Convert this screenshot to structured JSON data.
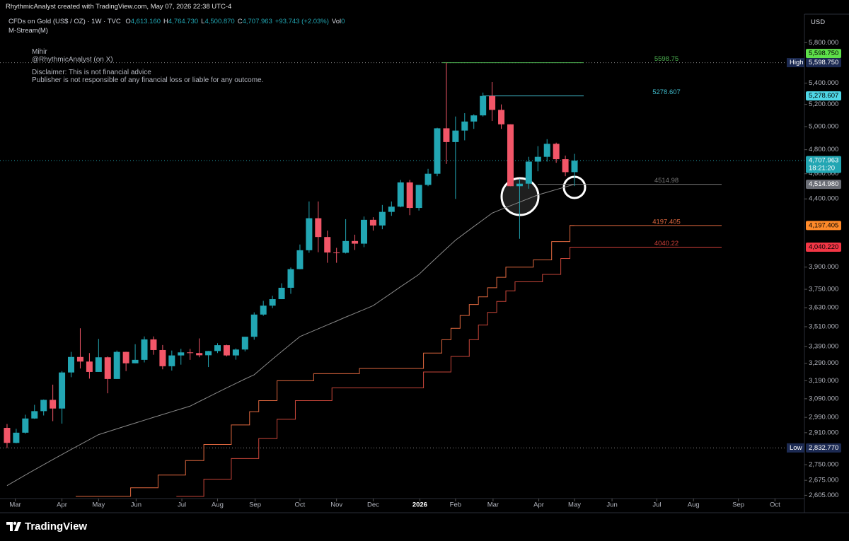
{
  "header": {
    "credit": "RhythmicAnalyst created with TradingView.com, May 07, 2026 22:38 UTC-4",
    "symbol": "CFDs on Gold (US$ / OZ) · 1W · TVC",
    "ohlc": [
      {
        "key": "O",
        "value": "4,613.160"
      },
      {
        "key": "H",
        "value": "4,764.730"
      },
      {
        "key": "L",
        "value": "4,500.870"
      },
      {
        "key": "C",
        "value": "4,707.963"
      }
    ],
    "change": "+93.743 (+2.03%)",
    "vol_key": "Vol",
    "vol": "0",
    "indicator": "M-Stream(M)",
    "currency": "USD",
    "brand": "TradingView"
  },
  "notes": [
    "Mihir",
    "@RhythmicAnalyst (on X)",
    "Disclaimer: This is not financial advice",
    "Publisher is not responsible of any financial loss or liable for any outcome."
  ],
  "chart_data": {
    "type": "candlestick",
    "log": true,
    "up_color": "#22a6b3",
    "down_color": "#f25668",
    "xlim": [
      -0.77,
      87.12
    ],
    "ylim": [
      2590,
      6100
    ],
    "xticks": [
      {
        "value": 0.9,
        "label": "Mar"
      },
      {
        "value": 6.0,
        "label": "Apr"
      },
      {
        "value": 10.0,
        "label": "May"
      },
      {
        "value": 14.1,
        "label": "Jun"
      },
      {
        "value": 19.1,
        "label": "Jul"
      },
      {
        "value": 23.0,
        "label": "Aug"
      },
      {
        "value": 27.1,
        "label": "Sep"
      },
      {
        "value": 32.0,
        "label": "Oct"
      },
      {
        "value": 36.0,
        "label": "Nov"
      },
      {
        "value": 40.0,
        "label": "Dec"
      },
      {
        "value": 45.1,
        "label": "2026"
      },
      {
        "value": 49.0,
        "label": "Feb"
      },
      {
        "value": 53.1,
        "label": "Mar"
      },
      {
        "value": 58.1,
        "label": "Apr"
      },
      {
        "value": 62.0,
        "label": "May"
      },
      {
        "value": 66.1,
        "label": "Jun"
      },
      {
        "value": 71.0,
        "label": "Jul"
      },
      {
        "value": 75.0,
        "label": "Aug"
      },
      {
        "value": 79.9,
        "label": "Sep"
      },
      {
        "value": 83.9,
        "label": "Oct"
      }
    ],
    "yticks": [
      {
        "value": 5800,
        "label": "5,800.000"
      },
      {
        "value": 5400,
        "label": "5,400.000"
      },
      {
        "value": 5200,
        "label": "5,200.000"
      },
      {
        "value": 5000,
        "label": "5,000.000"
      },
      {
        "value": 4800,
        "label": "4,800.000"
      },
      {
        "value": 4600,
        "label": "4,600.000"
      },
      {
        "value": 4400,
        "label": "4,400.000"
      },
      {
        "value": 3900,
        "label": "3,900.000"
      },
      {
        "value": 3750,
        "label": "3,750.000"
      },
      {
        "value": 3630,
        "label": "3,630.000"
      },
      {
        "value": 3510,
        "label": "3,510.000"
      },
      {
        "value": 3390,
        "label": "3,390.000"
      },
      {
        "value": 3290,
        "label": "3,290.000"
      },
      {
        "value": 3190,
        "label": "3,190.000"
      },
      {
        "value": 3090,
        "label": "3,090.000"
      },
      {
        "value": 2990,
        "label": "2,990.000"
      },
      {
        "value": 2910,
        "label": "2,910.000"
      },
      {
        "value": 2750,
        "label": "2,750.000"
      },
      {
        "value": 2675,
        "label": "2,675.000"
      },
      {
        "value": 2605,
        "label": "2,605.000"
      }
    ],
    "open": [
      2935,
      2858,
      2910,
      2984,
      3023,
      3084,
      3037,
      3237,
      3327,
      3300,
      3240,
      3325,
      3200,
      3357,
      3290,
      3310,
      3432,
      3368,
      3273,
      3336,
      3354,
      3350,
      3337,
      3362,
      3397,
      3336,
      3371,
      3448,
      3586,
      3643,
      3685,
      3760,
      3886,
      4018,
      4252,
      4113,
      4002,
      4000,
      4084,
      4065,
      4240,
      4198,
      4300,
      4340,
      4530,
      4330,
      4510,
      4600,
      4985,
      4865,
      4965,
      5045,
      5100,
      5278,
      5150,
      5020,
      4500,
      4520,
      4700,
      4740,
      4850,
      4720,
      4613.16
    ],
    "high": [
      2955,
      2930,
      3004,
      3057,
      3086,
      3168,
      3245,
      3357,
      3500,
      3350,
      3435,
      3330,
      3365,
      3358,
      3403,
      3450,
      3450,
      3398,
      3365,
      3375,
      3375,
      3438,
      3363,
      3409,
      3400,
      3378,
      3423,
      3600,
      3674,
      3707,
      3790,
      3897,
      4059,
      4380,
      4380,
      4160,
      4035,
      4245,
      4130,
      4265,
      4260,
      4353,
      4380,
      4550,
      4550,
      4500,
      4640,
      4990,
      5598.75,
      5090,
      5120,
      5110,
      5310,
      5410,
      5200,
      5020,
      4560,
      4740,
      4830,
      4890,
      4860,
      4750,
      4764.73
    ],
    "low": [
      2832.77,
      2856,
      2905,
      2982,
      3000,
      2970,
      2957,
      3210,
      3260,
      3202,
      3240,
      3120,
      3200,
      3245,
      3290,
      3295,
      3340,
      3255,
      3248,
      3282,
      3310,
      3325,
      3268,
      3350,
      3330,
      3311,
      3360,
      3430,
      3578,
      3627,
      3685,
      3720,
      3885,
      4000,
      4004,
      3930,
      3930,
      3995,
      4020,
      4040,
      4160,
      4170,
      4270,
      4335,
      4275,
      4310,
      4500,
      4580,
      4680,
      4400,
      4880,
      4980,
      5090,
      5050,
      4980,
      4500,
      4100,
      4480,
      4620,
      4700,
      4690,
      4580,
      4500.87
    ],
    "close": [
      2858,
      2910,
      2984,
      3023,
      3084,
      3037,
      3237,
      3327,
      3300,
      3240,
      3325,
      3200,
      3357,
      3290,
      3310,
      3432,
      3368,
      3273,
      3336,
      3354,
      3350,
      3337,
      3362,
      3397,
      3336,
      3371,
      3448,
      3586,
      3643,
      3685,
      3760,
      3886,
      4018,
      4252,
      4113,
      4002,
      4000,
      4084,
      4065,
      4240,
      4198,
      4300,
      4340,
      4530,
      4330,
      4510,
      4600,
      4985,
      4865,
      4965,
      5045,
      5100,
      5278,
      5150,
      5020,
      4500,
      4520,
      4700,
      4740,
      4850,
      4720,
      4613,
      4707.963
    ],
    "series": [
      {
        "kind": "line",
        "color": "#8a8a8a",
        "values": [
          2650,
          2675,
          2700,
          2725,
          2750,
          2775,
          2800,
          2825,
          2850,
          2875,
          2900,
          2915,
          2930,
          2945,
          2960,
          2975,
          2990,
          3005,
          3020,
          3035,
          3050,
          3075,
          3100,
          3125,
          3150,
          3175,
          3200,
          3224,
          3269,
          3314,
          3359,
          3404,
          3449,
          3473,
          3497,
          3521,
          3545,
          3570,
          3594,
          3618,
          3643,
          3684,
          3725,
          3767,
          3808,
          3850,
          3910,
          3970,
          4030,
          4090,
          4140,
          4190,
          4240,
          4291,
          4319,
          4347,
          4375,
          4403,
          4431,
          4452,
          4473,
          4494,
          4515
        ]
      },
      {
        "kind": "step",
        "color": "#e0683f",
        "values": [
          null,
          null,
          null,
          null,
          null,
          null,
          null,
          null,
          2600,
          2600,
          2600,
          2600,
          2600,
          2600,
          2640,
          2640,
          2640,
          2700,
          2700,
          2700,
          2770,
          2770,
          2850,
          2850,
          2850,
          2950,
          2950,
          3020,
          3080,
          3080,
          3190,
          3190,
          3190,
          3190,
          3230,
          3230,
          3230,
          3230,
          3230,
          3260,
          3260,
          3260,
          3260,
          3260,
          3260,
          3260,
          3350,
          3350,
          3430,
          3500,
          3580,
          3650,
          3700,
          3760,
          3830,
          3900,
          3900,
          3900,
          3950,
          3950,
          4080,
          4080,
          4197.405
        ]
      },
      {
        "kind": "step",
        "color": "#c9463a",
        "values": [
          null,
          null,
          null,
          null,
          null,
          null,
          null,
          null,
          null,
          null,
          null,
          null,
          null,
          null,
          null,
          null,
          null,
          null,
          null,
          2600,
          2600,
          2600,
          2680,
          2680,
          2680,
          2780,
          2780,
          2780,
          2880,
          2880,
          2980,
          2980,
          3080,
          3080,
          3080,
          3080,
          3150,
          3150,
          3150,
          3150,
          3150,
          3150,
          3150,
          3150,
          3150,
          3150,
          3240,
          3240,
          3240,
          3330,
          3330,
          3430,
          3520,
          3600,
          3670,
          3740,
          3800,
          3800,
          3800,
          3850,
          3850,
          3960,
          4040.22
        ]
      }
    ],
    "levels": [
      {
        "value": 5598.75,
        "badge": "5,598.750",
        "color": "#4caf50",
        "badge_color": "#5ee04a"
      },
      {
        "value": 5278.607,
        "badge": "5,278.607",
        "color": "#3fb8c8",
        "badge_color": "#4fd6e6"
      },
      {
        "value": 4514.98,
        "badge": "4,514.980",
        "color": "#777777",
        "badge_color": "#6b6e76"
      },
      {
        "value": 4197.405,
        "badge": "4,197.405",
        "color": "#e0683f",
        "badge_color": "#ff8a2a"
      },
      {
        "value": 4040.22,
        "badge": "4,040.220",
        "color": "#d0403a",
        "badge_color": "#f23645"
      }
    ],
    "high_mark": {
      "label": "High",
      "value": 5598.75,
      "badge": "5,598.750"
    },
    "low_mark": {
      "label": "Low",
      "value": 2832.77,
      "badge": "2,832.770"
    },
    "last": {
      "value": 4707.963,
      "badge": "4,707.963",
      "countdown": "18:21:20"
    }
  }
}
